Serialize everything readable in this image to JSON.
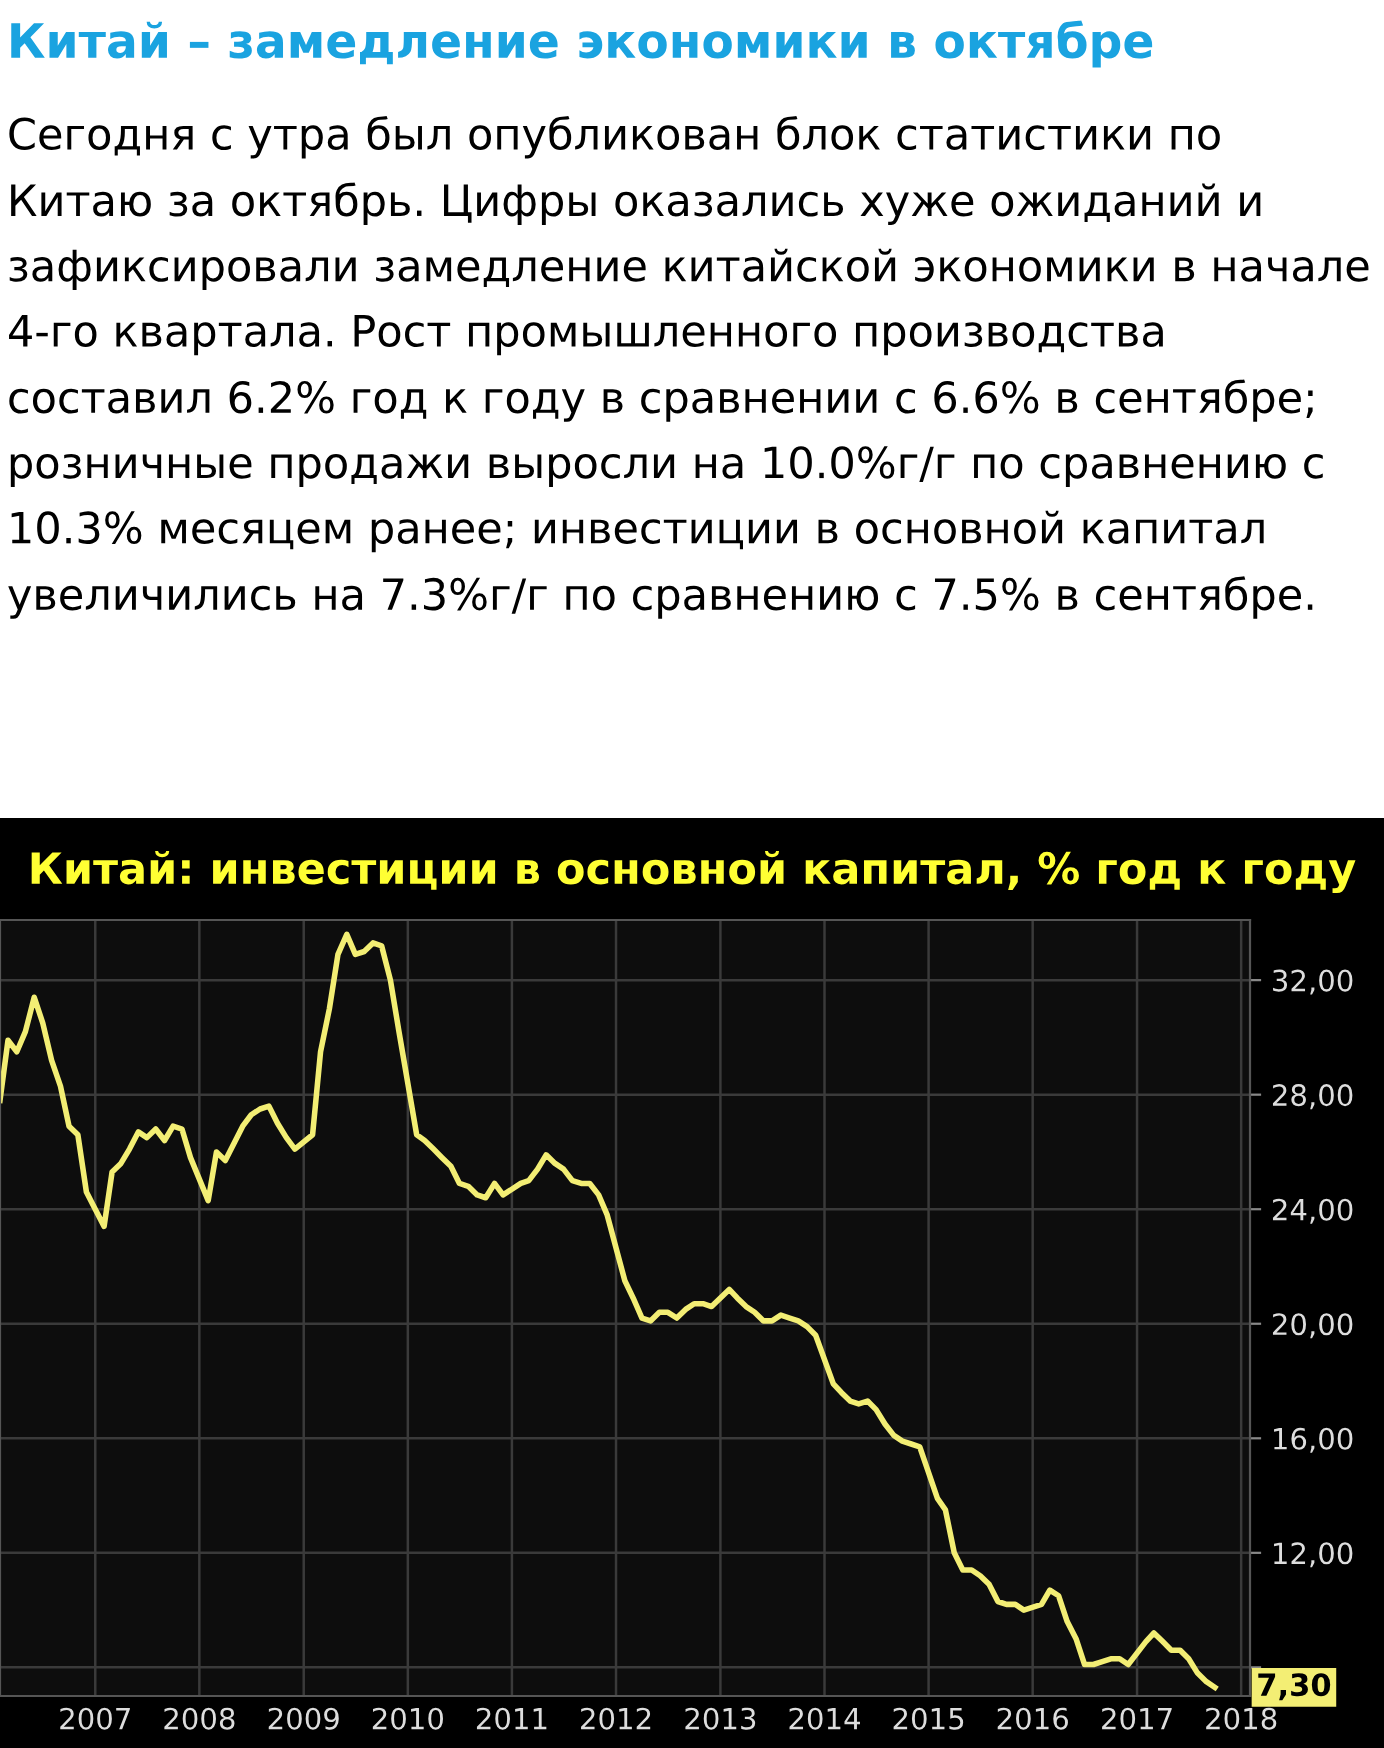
{
  "chart_data": {
    "type": "line",
    "title": "Китай: инвестиции в основной капитал, % год к году",
    "annotations": [
      "Китай – замедление экономики в октябре",
      "Сегодня с утра был опубликован блок статистики по Китаю за октябрь. Цифры оказались хуже ожиданий и зафиксировали замедление китайской экономики в начале 4-го квартала. Рост промышленного производства составил 6.2% год к году в сравнении с 6.6% в сентябре; розничные продажи выросли на 10.0%г/г по сравнению с 10.3% месяцем ранее; инвестиции в основной капитал увеличились на 7.3%г/г по сравнению с 7.5% в сентябре.",
      {
        "text": "7,30",
        "x": "2017-10",
        "y": 7.3
      }
    ],
    "x": [
      "2006-02",
      "2006-03",
      "2006-04",
      "2006-05",
      "2006-06",
      "2006-07",
      "2006-08",
      "2006-09",
      "2006-10",
      "2006-11",
      "2006-12",
      "2007-01",
      "2007-02",
      "2007-03",
      "2007-04",
      "2007-05",
      "2007-06",
      "2007-07",
      "2007-08",
      "2007-09",
      "2007-10",
      "2007-11",
      "2007-12",
      "2008-02",
      "2008-03",
      "2008-04",
      "2008-06",
      "2008-07",
      "2008-08",
      "2008-09",
      "2008-10",
      "2008-11",
      "2008-12",
      "2009-02",
      "2009-03",
      "2009-04",
      "2009-05",
      "2009-06",
      "2009-07",
      "2009-08",
      "2009-09",
      "2009-10",
      "2009-11",
      "2009-12",
      "2010-02",
      "2010-03",
      "2010-04",
      "2010-05",
      "2010-06",
      "2010-07",
      "2010-08",
      "2010-09",
      "2010-10",
      "2010-11",
      "2010-12",
      "2011-02",
      "2011-03",
      "2011-04",
      "2011-05",
      "2011-06",
      "2011-07",
      "2011-08",
      "2011-09",
      "2011-10",
      "2011-11",
      "2011-12",
      "2012-02",
      "2012-03",
      "2012-04",
      "2012-05",
      "2012-06",
      "2012-07",
      "2012-08",
      "2012-09",
      "2012-10",
      "2012-11",
      "2012-12",
      "2013-02",
      "2013-03",
      "2013-04",
      "2013-05",
      "2013-06",
      "2013-07",
      "2013-08",
      "2013-09",
      "2013-10",
      "2013-11",
      "2013-12",
      "2014-02",
      "2014-03",
      "2014-04",
      "2014-05",
      "2014-06",
      "2014-07",
      "2014-08",
      "2014-09",
      "2014-10",
      "2014-11",
      "2014-12",
      "2015-02",
      "2015-03",
      "2015-04",
      "2015-05",
      "2015-06",
      "2015-07",
      "2015-08",
      "2015-09",
      "2015-10",
      "2015-11",
      "2015-12",
      "2016-02",
      "2016-03",
      "2016-04",
      "2016-05",
      "2016-06",
      "2016-07",
      "2016-08",
      "2016-09",
      "2016-10",
      "2016-11",
      "2016-12",
      "2017-02",
      "2017-03",
      "2017-04",
      "2017-05",
      "2017-06",
      "2017-07",
      "2017-08",
      "2017-09",
      "2017-10"
    ],
    "series": [
      {
        "color": "#f3ee74",
        "values": [
          27.8,
          29.9,
          29.5,
          30.2,
          31.4,
          30.5,
          29.2,
          28.3,
          26.9,
          26.6,
          24.6,
          24.0,
          23.4,
          25.3,
          25.6,
          26.1,
          26.7,
          26.5,
          26.8,
          26.4,
          26.9,
          26.8,
          25.8,
          24.3,
          26.0,
          25.7,
          26.9,
          27.3,
          27.5,
          27.6,
          27.0,
          26.5,
          26.1,
          26.6,
          29.5,
          31.0,
          32.9,
          33.6,
          32.9,
          33.0,
          33.3,
          33.2,
          32.0,
          30.2,
          26.6,
          26.4,
          26.1,
          25.8,
          25.5,
          24.9,
          24.8,
          24.5,
          24.4,
          24.9,
          24.5,
          24.9,
          25.0,
          25.4,
          25.9,
          25.6,
          25.4,
          25.0,
          24.9,
          24.9,
          24.5,
          23.8,
          21.5,
          20.9,
          20.2,
          20.1,
          20.4,
          20.4,
          20.2,
          20.5,
          20.7,
          20.7,
          20.6,
          21.2,
          20.9,
          20.6,
          20.4,
          20.1,
          20.1,
          20.3,
          20.2,
          20.1,
          19.9,
          19.6,
          17.9,
          17.6,
          17.3,
          17.2,
          17.3,
          17.0,
          16.5,
          16.1,
          15.9,
          15.8,
          15.7,
          13.9,
          13.5,
          12.0,
          11.4,
          11.4,
          11.2,
          10.9,
          10.3,
          10.2,
          10.2,
          10.0,
          10.2,
          10.7,
          10.5,
          9.6,
          9.0,
          8.1,
          8.1,
          8.2,
          8.3,
          8.3,
          8.1,
          8.9,
          9.2,
          8.9,
          8.6,
          8.6,
          8.3,
          7.8,
          7.5,
          7.3
        ]
      }
    ],
    "xlim": [
      "2006-02",
      "2018-02"
    ],
    "xticks": [
      {
        "value": "2007",
        "label": "2007"
      },
      {
        "value": "2008",
        "label": "2008"
      },
      {
        "value": "2009",
        "label": "2009"
      },
      {
        "value": "2010",
        "label": "2010"
      },
      {
        "value": "2011",
        "label": "2011"
      },
      {
        "value": "2012",
        "label": "2012"
      },
      {
        "value": "2013",
        "label": "2013"
      },
      {
        "value": "2014",
        "label": "2014"
      },
      {
        "value": "2015",
        "label": "2015"
      },
      {
        "value": "2016",
        "label": "2016"
      },
      {
        "value": "2017",
        "label": "2017"
      },
      {
        "value": "2018",
        "label": "2018"
      }
    ],
    "ylim": [
      7.0,
      34.1
    ],
    "yticks": [
      {
        "value": 8,
        "label": null
      },
      {
        "value": 12,
        "label": "12,00"
      },
      {
        "value": 16,
        "label": "16,00"
      },
      {
        "value": 20,
        "label": "20,00"
      },
      {
        "value": 24,
        "label": "24,00"
      },
      {
        "value": 28,
        "label": "28,00"
      },
      {
        "value": 32,
        "label": "32,00"
      }
    ],
    "grid": true
  }
}
